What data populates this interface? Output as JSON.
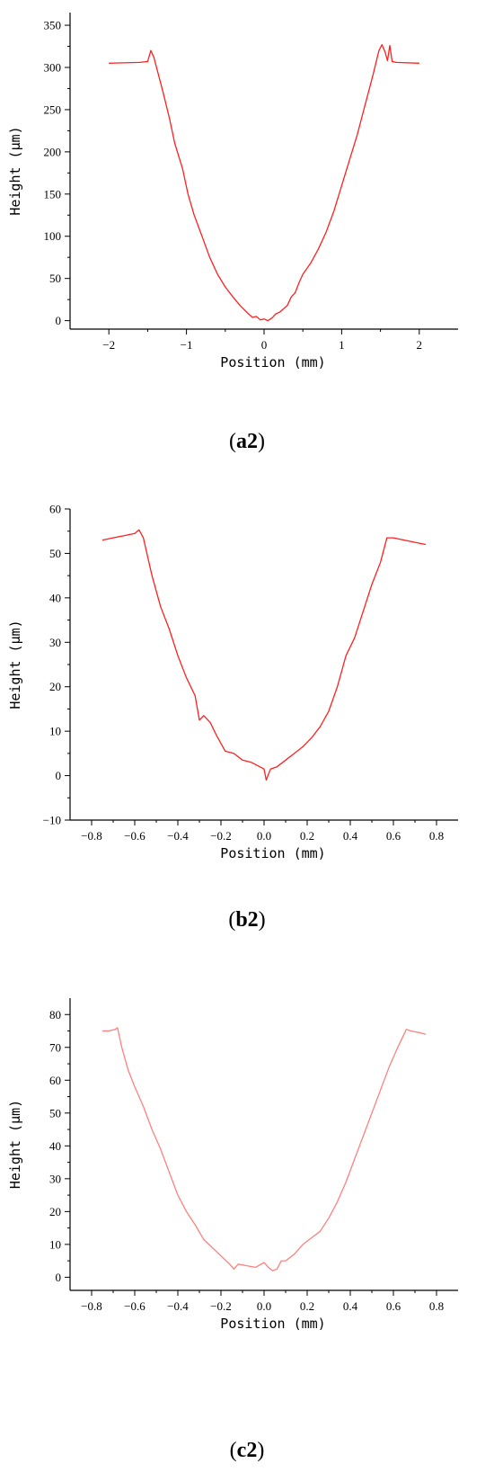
{
  "chart_data": [
    {
      "id": "a2",
      "type": "line",
      "caption_open": "(",
      "caption_label": "a2",
      "caption_close": ")",
      "xlabel": "Position (mm)",
      "ylabel": "Height (μm)",
      "xlim": [
        -2.5,
        2.5
      ],
      "ylim": [
        -10,
        365
      ],
      "xticks": [
        -2,
        -1,
        0,
        1,
        2
      ],
      "yticks": [
        0,
        50,
        100,
        150,
        200,
        250,
        300,
        350
      ],
      "color": "#ff2020",
      "series": [
        {
          "x": [
            -2.0,
            -1.6,
            -1.5,
            -1.46,
            -1.42,
            -1.38,
            -1.3,
            -1.22,
            -1.15,
            -1.05,
            -0.98,
            -0.9,
            -0.8,
            -0.7,
            -0.6,
            -0.5,
            -0.4,
            -0.3,
            -0.2,
            -0.15,
            -0.1,
            -0.05,
            0.0,
            0.05,
            0.1,
            0.15,
            0.2,
            0.25,
            0.3,
            0.35,
            0.4,
            0.45,
            0.5,
            0.6,
            0.7,
            0.8,
            0.9,
            1.0,
            1.1,
            1.2,
            1.3,
            1.4,
            1.48,
            1.52,
            1.56,
            1.59,
            1.62,
            1.65,
            1.7,
            2.0
          ],
          "y": [
            305,
            306,
            307,
            320,
            312,
            298,
            270,
            240,
            210,
            180,
            150,
            125,
            100,
            75,
            55,
            40,
            28,
            17,
            8,
            4,
            5,
            1,
            2,
            0,
            3,
            8,
            10,
            14,
            18,
            28,
            33,
            45,
            55,
            68,
            85,
            105,
            130,
            160,
            190,
            220,
            255,
            290,
            320,
            327,
            318,
            308,
            326,
            307,
            306,
            305
          ]
        }
      ]
    },
    {
      "id": "b2",
      "type": "line",
      "caption_open": "(",
      "caption_label": "b2",
      "caption_close": ")",
      "xlabel": "Position (mm)",
      "ylabel": "Height (μm)",
      "xlim": [
        -0.9,
        0.9
      ],
      "ylim": [
        -10,
        60
      ],
      "xticks": [
        -0.8,
        -0.6,
        -0.4,
        -0.2,
        0.0,
        0.2,
        0.4,
        0.6,
        0.8
      ],
      "yticks": [
        -10,
        0,
        10,
        20,
        30,
        40,
        50,
        60
      ],
      "color": "#ff2020",
      "series": [
        {
          "x": [
            -0.75,
            -0.7,
            -0.65,
            -0.6,
            -0.58,
            -0.56,
            -0.52,
            -0.48,
            -0.44,
            -0.4,
            -0.36,
            -0.32,
            -0.3,
            -0.28,
            -0.25,
            -0.22,
            -0.18,
            -0.14,
            -0.1,
            -0.06,
            -0.02,
            0.0,
            0.01,
            0.03,
            0.06,
            0.1,
            0.14,
            0.18,
            0.22,
            0.26,
            0.3,
            0.34,
            0.38,
            0.42,
            0.46,
            0.5,
            0.54,
            0.57,
            0.6,
            0.65,
            0.7,
            0.75
          ],
          "y": [
            53,
            53.5,
            54,
            54.5,
            55.3,
            53.5,
            45,
            38,
            33,
            27,
            22,
            18,
            12.5,
            13.5,
            12,
            9,
            5.5,
            5,
            3.5,
            3,
            2,
            1.5,
            -1,
            1.5,
            2,
            3.5,
            5,
            6.5,
            8.5,
            11,
            14.5,
            20,
            27,
            31,
            37,
            43,
            48,
            53.5,
            53.5,
            53,
            52.5,
            52
          ]
        }
      ]
    },
    {
      "id": "c2",
      "type": "line",
      "caption_open": "(",
      "caption_label": "c2",
      "caption_close": ")",
      "xlabel": "Position (mm)",
      "ylabel": "Height (μm)",
      "xlim": [
        -0.9,
        0.9
      ],
      "ylim": [
        -4,
        85
      ],
      "xticks": [
        -0.8,
        -0.6,
        -0.4,
        -0.2,
        0.0,
        0.2,
        0.4,
        0.6,
        0.8
      ],
      "yticks": [
        0,
        10,
        20,
        30,
        40,
        50,
        60,
        70,
        80
      ],
      "color": "#ff8080",
      "series": [
        {
          "x": [
            -0.75,
            -0.72,
            -0.69,
            -0.68,
            -0.66,
            -0.63,
            -0.6,
            -0.56,
            -0.52,
            -0.5,
            -0.48,
            -0.44,
            -0.4,
            -0.36,
            -0.32,
            -0.28,
            -0.24,
            -0.2,
            -0.16,
            -0.14,
            -0.12,
            -0.08,
            -0.04,
            0.0,
            0.02,
            0.04,
            0.06,
            0.08,
            0.1,
            0.14,
            0.18,
            0.22,
            0.26,
            0.3,
            0.34,
            0.38,
            0.42,
            0.46,
            0.5,
            0.54,
            0.58,
            0.62,
            0.66,
            0.68,
            0.72,
            0.75
          ],
          "y": [
            75,
            75,
            75.5,
            76,
            70,
            63,
            58,
            52,
            45,
            42,
            39,
            32,
            25,
            20,
            16,
            11.5,
            9,
            6.5,
            4,
            2.5,
            4,
            3.5,
            3,
            4.5,
            3,
            2,
            2.5,
            5,
            5,
            7,
            10,
            12,
            14,
            18,
            23,
            29,
            36,
            43,
            50,
            57,
            64,
            70,
            75.5,
            75,
            74.5,
            74
          ]
        }
      ]
    }
  ]
}
